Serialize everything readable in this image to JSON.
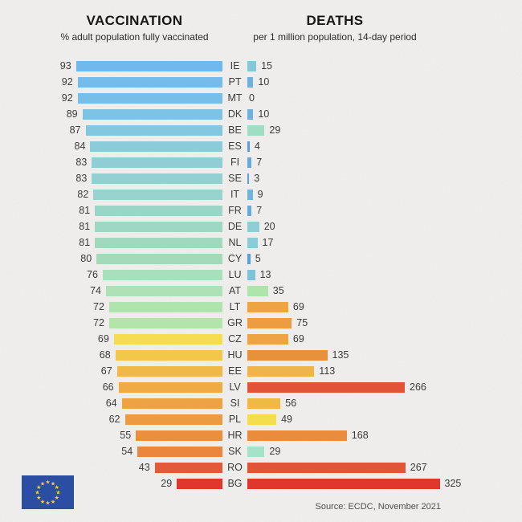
{
  "header": {
    "vaccination_title": "VACCINATION",
    "vaccination_subtitle": "% adult population fully vaccinated",
    "deaths_title": "DEATHS",
    "deaths_subtitle": "per 1 million population, 14-day period"
  },
  "footer": {
    "source": "Source: ECDC, November 2021"
  },
  "flag": {
    "name": "european-union-flag",
    "blue": "#2b4ea2",
    "star_color": "#f8d12e"
  },
  "colors": {
    "background": "#f0efed",
    "text": "#3b3b3b",
    "title": "#161616",
    "source_text": "#4e4e4e"
  },
  "chart_data": {
    "type": "bar",
    "orientation": "horizontal-diverging",
    "title_left": "VACCINATION",
    "subtitle_left": "% adult population fully vaccinated",
    "title_right": "DEATHS",
    "subtitle_right": "per 1 million population, 14-day period",
    "xlim_left": [
      0,
      100
    ],
    "xlim_right": [
      0,
      325
    ],
    "grid": false,
    "legend": "none",
    "categories": [
      "IE",
      "PT",
      "MT",
      "DK",
      "BE",
      "ES",
      "FI",
      "SE",
      "IT",
      "FR",
      "DE",
      "NL",
      "CY",
      "LU",
      "AT",
      "LT",
      "GR",
      "CZ",
      "HU",
      "EE",
      "LV",
      "SI",
      "PL",
      "HR",
      "SK",
      "RO",
      "BG"
    ],
    "series": [
      {
        "name": "Vaccination (% adults fully vaccinated)",
        "values": [
          93,
          92,
          92,
          89,
          87,
          84,
          83,
          83,
          82,
          81,
          81,
          81,
          80,
          76,
          74,
          72,
          72,
          69,
          68,
          67,
          66,
          64,
          62,
          55,
          54,
          43,
          29
        ]
      },
      {
        "name": "Deaths per 1 million population, 14-day period",
        "values": [
          15,
          10,
          0,
          10,
          29,
          4,
          7,
          3,
          9,
          7,
          20,
          17,
          5,
          13,
          35,
          69,
          75,
          69,
          135,
          113,
          266,
          56,
          49,
          168,
          29,
          267,
          325
        ]
      }
    ],
    "rows": [
      {
        "code": "IE",
        "vacc": 93,
        "deaths": 15,
        "vacc_color": "#6fb9ee",
        "death_color": "#85c8da"
      },
      {
        "code": "PT",
        "vacc": 92,
        "deaths": 10,
        "vacc_color": "#73bceb",
        "death_color": "#6fb1de"
      },
      {
        "code": "MT",
        "vacc": 92,
        "deaths": 0,
        "vacc_color": "#77bee9",
        "death_color": "#6fb1de"
      },
      {
        "code": "DK",
        "vacc": 89,
        "deaths": 10,
        "vacc_color": "#7dc3e4",
        "death_color": "#6fb1de"
      },
      {
        "code": "BE",
        "vacc": 87,
        "deaths": 29,
        "vacc_color": "#84c7df",
        "death_color": "#9fdec4"
      },
      {
        "code": "ES",
        "vacc": 84,
        "deaths": 4,
        "vacc_color": "#8bcbda",
        "death_color": "#5c9fd8"
      },
      {
        "code": "FI",
        "vacc": 83,
        "deaths": 7,
        "vacc_color": "#90ced5",
        "death_color": "#66a9dc"
      },
      {
        "code": "SE",
        "vacc": 83,
        "deaths": 3,
        "vacc_color": "#94d0d1",
        "death_color": "#5c9fd8"
      },
      {
        "code": "IT",
        "vacc": 82,
        "deaths": 9,
        "vacc_color": "#98d3cd",
        "death_color": "#70b4dc"
      },
      {
        "code": "FR",
        "vacc": 81,
        "deaths": 7,
        "vacc_color": "#9bd5c8",
        "death_color": "#66a9dc"
      },
      {
        "code": "DE",
        "vacc": 81,
        "deaths": 20,
        "vacc_color": "#9ed7c3",
        "death_color": "#8fced4"
      },
      {
        "code": "NL",
        "vacc": 81,
        "deaths": 17,
        "vacc_color": "#a1d9bf",
        "death_color": "#8ccbd8"
      },
      {
        "code": "CY",
        "vacc": 80,
        "deaths": 5,
        "vacc_color": "#a4daba",
        "death_color": "#5c9fd8"
      },
      {
        "code": "LU",
        "vacc": 76,
        "deaths": 13,
        "vacc_color": "#a8e0bc",
        "death_color": "#7ec2dc"
      },
      {
        "code": "AT",
        "vacc": 74,
        "deaths": 35,
        "vacc_color": "#ace2b5",
        "death_color": "#aee5ab"
      },
      {
        "code": "LT",
        "vacc": 72,
        "deaths": 69,
        "vacc_color": "#b0e4af",
        "death_color": "#eea442"
      },
      {
        "code": "GR",
        "vacc": 72,
        "deaths": 75,
        "vacc_color": "#b3e5ab",
        "death_color": "#ed9c40"
      },
      {
        "code": "CZ",
        "vacc": 69,
        "deaths": 69,
        "vacc_color": "#f5dc50",
        "death_color": "#eea442"
      },
      {
        "code": "HU",
        "vacc": 68,
        "deaths": 135,
        "vacc_color": "#f2c84a",
        "death_color": "#e8913b"
      },
      {
        "code": "EE",
        "vacc": 67,
        "deaths": 113,
        "vacc_color": "#f0b846",
        "death_color": "#efb44a"
      },
      {
        "code": "LV",
        "vacc": 66,
        "deaths": 266,
        "vacc_color": "#efac44",
        "death_color": "#e15437"
      },
      {
        "code": "SI",
        "vacc": 64,
        "deaths": 56,
        "vacc_color": "#eea342",
        "death_color": "#efba42"
      },
      {
        "code": "PL",
        "vacc": 62,
        "deaths": 49,
        "vacc_color": "#ed9b40",
        "death_color": "#f5de4e"
      },
      {
        "code": "HR",
        "vacc": 55,
        "deaths": 168,
        "vacc_color": "#eb8e3e",
        "death_color": "#ea8c3c"
      },
      {
        "code": "SK",
        "vacc": 54,
        "deaths": 29,
        "vacc_color": "#ea873c",
        "death_color": "#a5e2ca"
      },
      {
        "code": "RO",
        "vacc": 43,
        "deaths": 267,
        "vacc_color": "#e4593a",
        "death_color": "#e15437"
      },
      {
        "code": "BG",
        "vacc": 29,
        "deaths": 325,
        "vacc_color": "#df372d",
        "death_color": "#df372d"
      }
    ]
  }
}
